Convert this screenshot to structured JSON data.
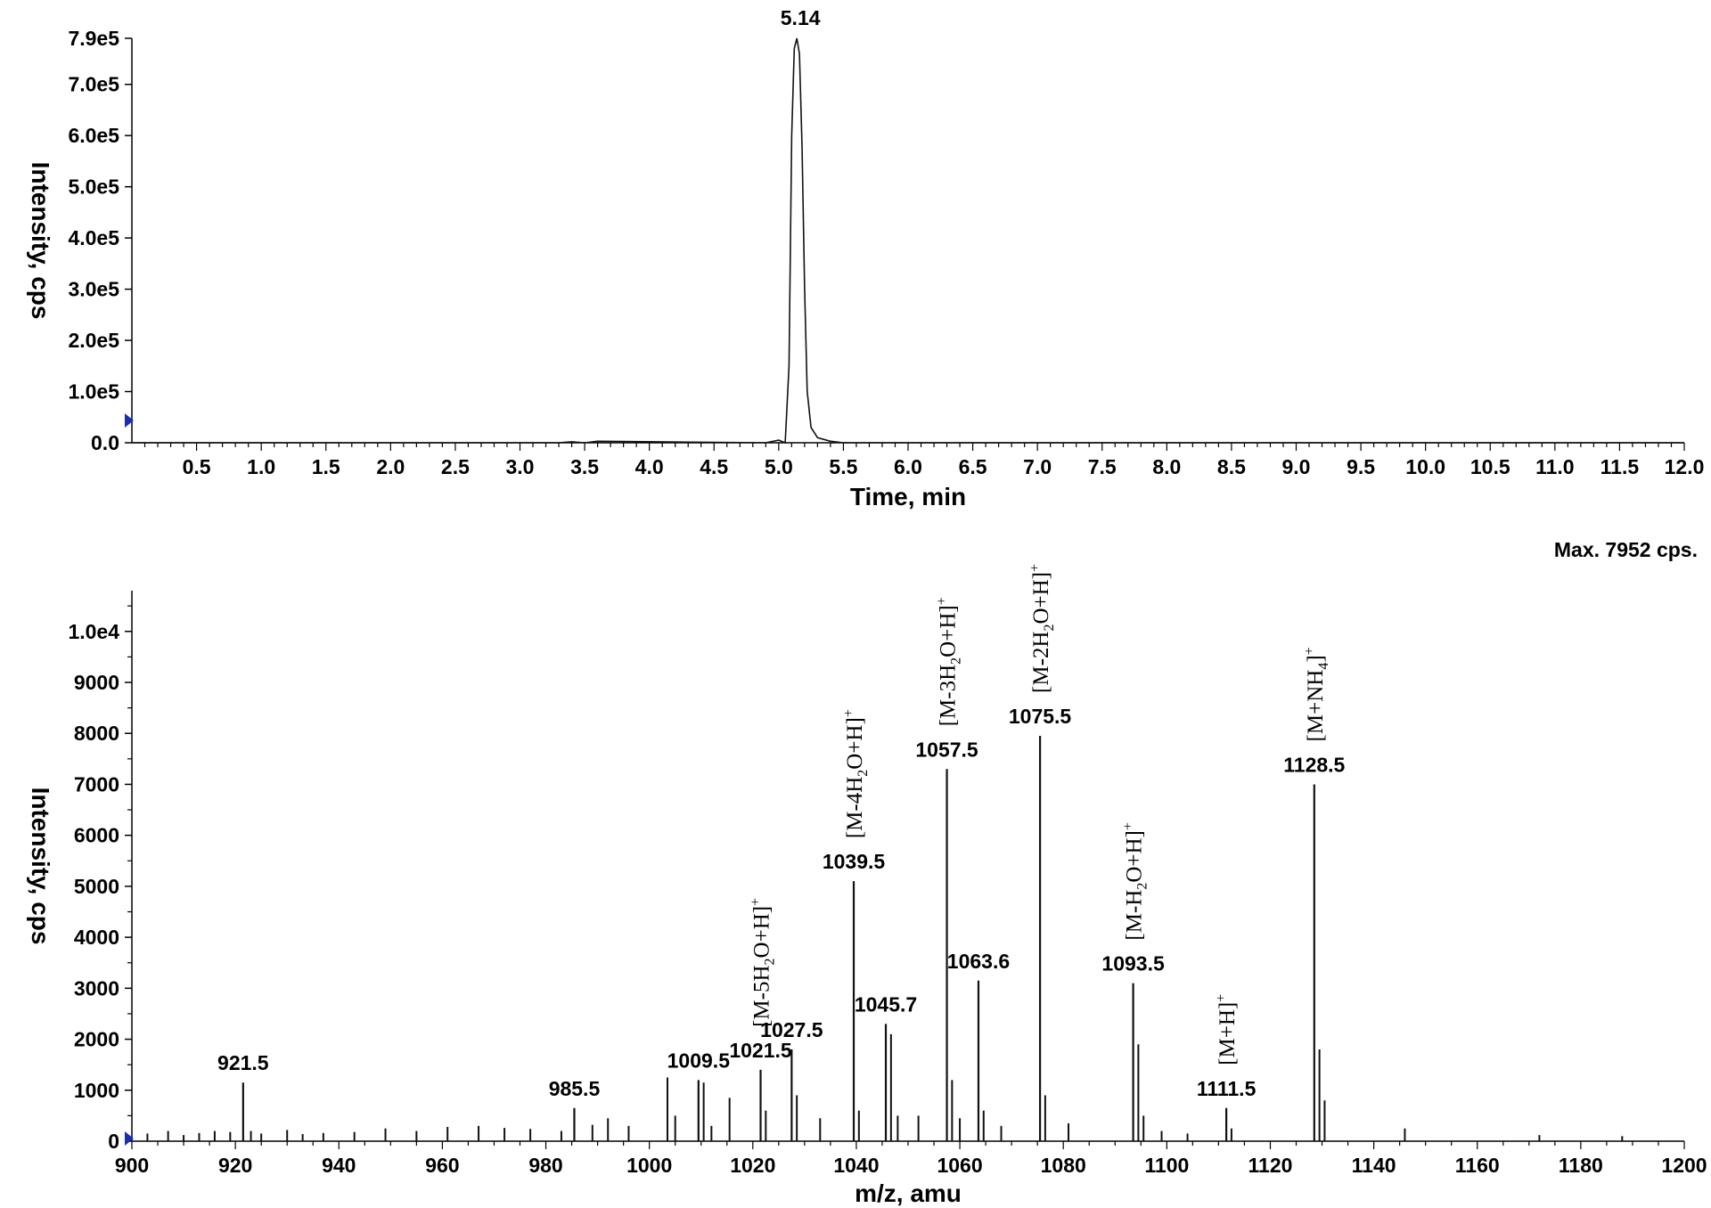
{
  "chart_data": [
    {
      "type": "line",
      "xlabel": "Time, min",
      "ylabel": "Intensity, cps",
      "xlim": [
        0.0,
        12.0
      ],
      "ylim": [
        0,
        790000
      ],
      "x_ticks": [
        "0.5",
        "1.0",
        "1.5",
        "2.0",
        "2.5",
        "3.0",
        "3.5",
        "4.0",
        "4.5",
        "5.0",
        "5.5",
        "6.0",
        "6.5",
        "7.0",
        "7.5",
        "8.0",
        "8.5",
        "9.0",
        "9.5",
        "10.0",
        "10.5",
        "11.0",
        "11.5",
        "12.0"
      ],
      "y_ticks": [
        {
          "value": 0,
          "label": "0.0"
        },
        {
          "value": 100000,
          "label": "1.0e5"
        },
        {
          "value": 200000,
          "label": "2.0e5"
        },
        {
          "value": 300000,
          "label": "3.0e5"
        },
        {
          "value": 400000,
          "label": "4.0e5"
        },
        {
          "value": 500000,
          "label": "5.0e5"
        },
        {
          "value": 600000,
          "label": "6.0e5"
        },
        {
          "value": 700000,
          "label": "7.0e5"
        },
        {
          "value": 790000,
          "label": "7.9e5"
        }
      ],
      "peak_label": {
        "x": 5.14,
        "y": 790000,
        "text": "5.14"
      },
      "series": [
        {
          "x": [
            0.0,
            3.3,
            3.4,
            3.5,
            3.6,
            4.9,
            5.0,
            5.05,
            5.08,
            5.1,
            5.12,
            5.14,
            5.16,
            5.18,
            5.2,
            5.22,
            5.25,
            5.3,
            5.4,
            5.5,
            12.0
          ],
          "y": [
            0,
            0,
            2000,
            0,
            3000,
            0,
            5000,
            0,
            150000,
            600000,
            770000,
            790000,
            760000,
            580000,
            300000,
            100000,
            30000,
            10000,
            3000,
            0,
            0
          ]
        }
      ]
    },
    {
      "type": "bar",
      "xlabel": "m/z, amu",
      "ylabel": "Intensity, cps",
      "annotation": "Max. 7952 cps.",
      "xlim": [
        900,
        1200
      ],
      "ylim": [
        0,
        10800
      ],
      "x_ticks": [
        "900",
        "920",
        "940",
        "960",
        "980",
        "1000",
        "1020",
        "1040",
        "1060",
        "1080",
        "1100",
        "1120",
        "1140",
        "1160",
        "1180",
        "1200"
      ],
      "y_ticks": [
        {
          "value": 0,
          "label": "0"
        },
        {
          "value": 1000,
          "label": "1000"
        },
        {
          "value": 2000,
          "label": "2000"
        },
        {
          "value": 3000,
          "label": "3000"
        },
        {
          "value": 4000,
          "label": "4000"
        },
        {
          "value": 5000,
          "label": "5000"
        },
        {
          "value": 6000,
          "label": "6000"
        },
        {
          "value": 7000,
          "label": "7000"
        },
        {
          "value": 8000,
          "label": "8000"
        },
        {
          "value": 9000,
          "label": "9000"
        },
        {
          "value": 10000,
          "label": "1.0e4"
        }
      ],
      "peaks": [
        {
          "mz": 921.5,
          "intensity": 1150,
          "label": "921.5"
        },
        {
          "mz": 985.5,
          "intensity": 650,
          "label": "985.5"
        },
        {
          "mz": 1009.5,
          "intensity": 1200,
          "label": "1009.5"
        },
        {
          "mz": 1021.5,
          "intensity": 1400,
          "label": "1021.5"
        },
        {
          "mz": 1027.5,
          "intensity": 1800,
          "label": "1027.5"
        },
        {
          "mz": 1039.5,
          "intensity": 5100,
          "label": "1039.5"
        },
        {
          "mz": 1045.7,
          "intensity": 2300,
          "label": "1045.7"
        },
        {
          "mz": 1057.5,
          "intensity": 7300,
          "label": "1057.5"
        },
        {
          "mz": 1063.6,
          "intensity": 3150,
          "label": "1063.6"
        },
        {
          "mz": 1075.5,
          "intensity": 7952,
          "label": "1075.5"
        },
        {
          "mz": 1093.5,
          "intensity": 3100,
          "label": "1093.5"
        },
        {
          "mz": 1111.5,
          "intensity": 650,
          "label": "1111.5"
        },
        {
          "mz": 1128.5,
          "intensity": 7000,
          "label": "1128.5"
        }
      ],
      "minor_peaks": [
        {
          "mz": 903,
          "intensity": 150
        },
        {
          "mz": 907,
          "intensity": 200
        },
        {
          "mz": 910,
          "intensity": 120
        },
        {
          "mz": 913,
          "intensity": 160
        },
        {
          "mz": 916,
          "intensity": 200
        },
        {
          "mz": 919,
          "intensity": 180
        },
        {
          "mz": 923,
          "intensity": 200
        },
        {
          "mz": 925,
          "intensity": 150
        },
        {
          "mz": 930,
          "intensity": 220
        },
        {
          "mz": 933,
          "intensity": 140
        },
        {
          "mz": 937,
          "intensity": 160
        },
        {
          "mz": 943,
          "intensity": 180
        },
        {
          "mz": 949,
          "intensity": 250
        },
        {
          "mz": 955,
          "intensity": 200
        },
        {
          "mz": 961,
          "intensity": 280
        },
        {
          "mz": 967,
          "intensity": 300
        },
        {
          "mz": 972,
          "intensity": 260
        },
        {
          "mz": 977,
          "intensity": 240
        },
        {
          "mz": 983,
          "intensity": 200
        },
        {
          "mz": 989,
          "intensity": 320
        },
        {
          "mz": 992,
          "intensity": 450
        },
        {
          "mz": 996,
          "intensity": 300
        },
        {
          "mz": 1003.5,
          "intensity": 1250
        },
        {
          "mz": 1005,
          "intensity": 500
        },
        {
          "mz": 1010.5,
          "intensity": 1150
        },
        {
          "mz": 1012,
          "intensity": 300
        },
        {
          "mz": 1015.5,
          "intensity": 850
        },
        {
          "mz": 1022.5,
          "intensity": 600
        },
        {
          "mz": 1028.5,
          "intensity": 900
        },
        {
          "mz": 1033,
          "intensity": 450
        },
        {
          "mz": 1040.5,
          "intensity": 600
        },
        {
          "mz": 1046.7,
          "intensity": 2100
        },
        {
          "mz": 1048,
          "intensity": 500
        },
        {
          "mz": 1052,
          "intensity": 500
        },
        {
          "mz": 1058.5,
          "intensity": 1200
        },
        {
          "mz": 1060,
          "intensity": 450
        },
        {
          "mz": 1064.6,
          "intensity": 600
        },
        {
          "mz": 1068,
          "intensity": 300
        },
        {
          "mz": 1076.5,
          "intensity": 900
        },
        {
          "mz": 1081,
          "intensity": 350
        },
        {
          "mz": 1094.5,
          "intensity": 1900
        },
        {
          "mz": 1095.5,
          "intensity": 500
        },
        {
          "mz": 1099,
          "intensity": 200
        },
        {
          "mz": 1104,
          "intensity": 150
        },
        {
          "mz": 1112.5,
          "intensity": 250
        },
        {
          "mz": 1129.5,
          "intensity": 1800
        },
        {
          "mz": 1130.5,
          "intensity": 800
        },
        {
          "mz": 1146,
          "intensity": 250
        },
        {
          "mz": 1172,
          "intensity": 120
        },
        {
          "mz": 1188,
          "intensity": 100
        }
      ],
      "ion_annotations": [
        {
          "mz": 1021.5,
          "pre": "[M-5H",
          "sub": "2",
          "post": "O+H]",
          "sup": "+"
        },
        {
          "mz": 1039.5,
          "pre": "[M-4H",
          "sub": "2",
          "post": "O+H]",
          "sup": "+"
        },
        {
          "mz": 1057.5,
          "pre": "[M-3H",
          "sub": "2",
          "post": "O+H]",
          "sup": "+"
        },
        {
          "mz": 1075.5,
          "pre": "[M-2H",
          "sub": "2",
          "post": "O+H]",
          "sup": "+"
        },
        {
          "mz": 1093.5,
          "pre": "[M-H",
          "sub": "2",
          "post": "O+H]",
          "sup": "+"
        },
        {
          "mz": 1111.5,
          "pre": "[M+H]",
          "sub": "",
          "post": "",
          "sup": "+"
        },
        {
          "mz": 1128.5,
          "pre": "[M+NH",
          "sub": "4",
          "post": "]",
          "sup": "+"
        }
      ]
    }
  ]
}
